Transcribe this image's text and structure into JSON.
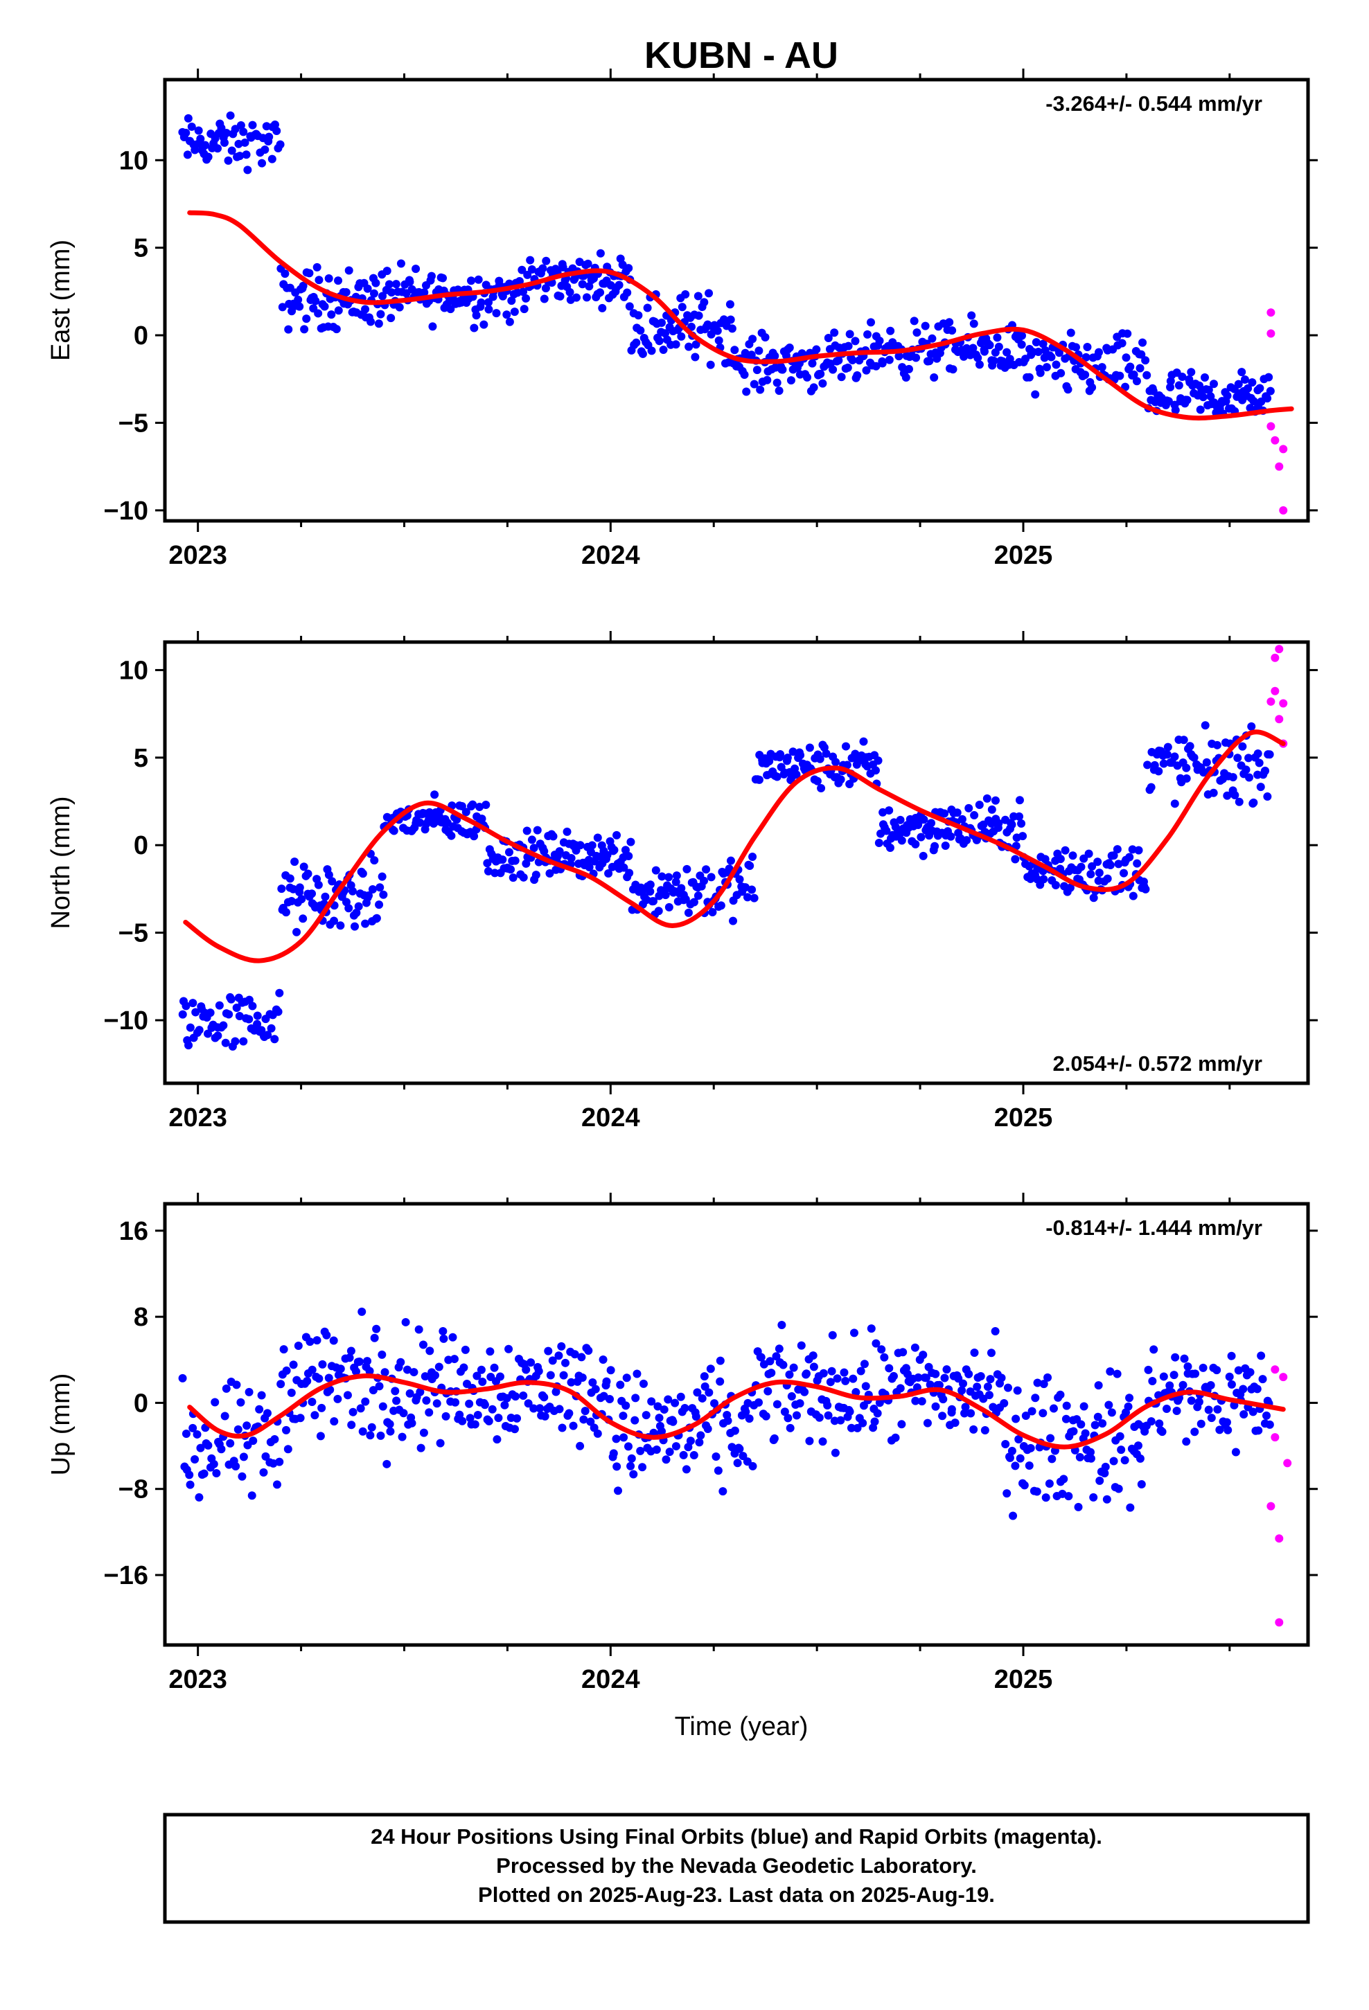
{
  "title": "KUBN - AU",
  "xlabel": "Time (year)",
  "footer": {
    "line1": "24 Hour Positions Using Final Orbits (blue) and Rapid Orbits (magenta).",
    "line2": "Processed by the Nevada Geodetic Laboratory.",
    "line3": "Plotted on 2025-Aug-23. Last data on 2025-Aug-19."
  },
  "colors": {
    "final": "#0000ff",
    "rapid": "#ff00ff",
    "fit": "#ff0000"
  },
  "chart_data": [
    {
      "type": "scatter",
      "ylabel": "East (mm)",
      "rate_text": "-3.264+/- 0.544 mm/yr",
      "rate_position": "top-right",
      "xlim": [
        2022.92,
        2025.69
      ],
      "ylim": [
        -10.6,
        14.6
      ],
      "x_ticks": [
        2023,
        2024,
        2025
      ],
      "x_tick_labels": [
        "2023",
        "2024",
        "2025"
      ],
      "y_ticks": [
        -10,
        -5,
        0,
        5,
        10
      ],
      "y_tick_labels": [
        "−10",
        "−5",
        "0",
        "5",
        "10"
      ],
      "grid": false,
      "fit_line": {
        "x": [
          2022.98,
          2023.04,
          2023.1,
          2023.2,
          2023.3,
          2023.4,
          2023.5,
          2023.6,
          2023.7,
          2023.8,
          2023.9,
          2024.0,
          2024.1,
          2024.2,
          2024.3,
          2024.4,
          2024.5,
          2024.6,
          2024.7,
          2024.8,
          2024.9,
          2025.0,
          2025.1,
          2025.2,
          2025.3,
          2025.4,
          2025.5,
          2025.6,
          2025.65
        ],
        "y": [
          7.0,
          6.9,
          6.3,
          4.2,
          2.6,
          1.9,
          2.0,
          2.3,
          2.5,
          2.9,
          3.5,
          3.6,
          2.3,
          0.0,
          -1.3,
          -1.5,
          -1.2,
          -1.0,
          -0.9,
          -0.5,
          0.1,
          0.3,
          -0.8,
          -2.5,
          -4.1,
          -4.7,
          -4.6,
          -4.3,
          -4.2
        ]
      },
      "series": [
        {
          "name": "Final Orbits (blue)",
          "segments": [
            {
              "x_start": 2022.96,
              "x_end": 2023.2,
              "center": 11.0,
              "spread": 1.3,
              "count": 60
            },
            {
              "x_start": 2023.2,
              "x_end": 2023.45,
              "center": 2.1,
              "spread": 1.6,
              "count": 75
            },
            {
              "x_start": 2023.45,
              "x_end": 2023.8,
              "center": 2.3,
              "spread": 1.4,
              "count": 95
            },
            {
              "x_start": 2023.8,
              "x_end": 2024.05,
              "center": 3.2,
              "spread": 1.2,
              "count": 80
            },
            {
              "x_start": 2024.05,
              "x_end": 2024.3,
              "center": 0.5,
              "spread": 1.8,
              "count": 75
            },
            {
              "x_start": 2024.3,
              "x_end": 2024.6,
              "center": -1.6,
              "spread": 1.4,
              "count": 85
            },
            {
              "x_start": 2024.6,
              "x_end": 2025.0,
              "center": -0.8,
              "spread": 1.4,
              "count": 110
            },
            {
              "x_start": 2025.0,
              "x_end": 2025.3,
              "center": -1.8,
              "spread": 1.6,
              "count": 80
            },
            {
              "x_start": 2025.3,
              "x_end": 2025.6,
              "center": -3.5,
              "spread": 1.3,
              "count": 85
            }
          ]
        },
        {
          "name": "Rapid Orbits (magenta)",
          "points": [
            [
              2025.6,
              1.3
            ],
            [
              2025.6,
              0.1
            ],
            [
              2025.6,
              -5.2
            ],
            [
              2025.61,
              -6.0
            ],
            [
              2025.62,
              -7.5
            ],
            [
              2025.63,
              -6.5
            ],
            [
              2025.63,
              -10.0
            ]
          ]
        }
      ]
    },
    {
      "type": "scatter",
      "ylabel": "North (mm)",
      "rate_text": "2.054+/- 0.572 mm/yr",
      "rate_position": "bottom-right",
      "xlim": [
        2022.92,
        2025.69
      ],
      "ylim": [
        -13.6,
        11.6
      ],
      "x_ticks": [
        2023,
        2024,
        2025
      ],
      "x_tick_labels": [
        "2023",
        "2024",
        "2025"
      ],
      "y_ticks": [
        -10,
        -5,
        0,
        5,
        10
      ],
      "y_tick_labels": [
        "−10",
        "−5",
        "0",
        "5",
        "10"
      ],
      "grid": false,
      "fit_line": {
        "x": [
          2022.97,
          2023.05,
          2023.15,
          2023.25,
          2023.35,
          2023.45,
          2023.55,
          2023.65,
          2023.75,
          2023.85,
          2023.95,
          2024.05,
          2024.15,
          2024.25,
          2024.35,
          2024.45,
          2024.55,
          2024.65,
          2024.75,
          2024.85,
          2024.95,
          2025.05,
          2025.15,
          2025.25,
          2025.35,
          2025.45,
          2025.55,
          2025.63
        ],
        "y": [
          -4.4,
          -5.8,
          -6.6,
          -5.5,
          -2.3,
          0.8,
          2.4,
          1.5,
          0.2,
          -0.9,
          -1.8,
          -3.3,
          -4.6,
          -3.2,
          0.5,
          3.6,
          4.4,
          3.2,
          2.0,
          1.0,
          0.0,
          -1.2,
          -2.4,
          -2.2,
          0.4,
          4.0,
          6.4,
          5.8
        ]
      },
      "series": [
        {
          "name": "Final Orbits (blue)",
          "segments": [
            {
              "x_start": 2022.96,
              "x_end": 2023.2,
              "center": -10.0,
              "spread": 1.5,
              "count": 60
            },
            {
              "x_start": 2023.2,
              "x_end": 2023.45,
              "center": -3.0,
              "spread": 1.8,
              "count": 75
            },
            {
              "x_start": 2023.45,
              "x_end": 2023.7,
              "center": 1.4,
              "spread": 1.1,
              "count": 70
            },
            {
              "x_start": 2023.7,
              "x_end": 2024.05,
              "center": -0.6,
              "spread": 1.2,
              "count": 110
            },
            {
              "x_start": 2024.05,
              "x_end": 2024.35,
              "center": -2.5,
              "spread": 1.6,
              "count": 85
            },
            {
              "x_start": 2024.35,
              "x_end": 2024.65,
              "center": 4.5,
              "spread": 1.2,
              "count": 85
            },
            {
              "x_start": 2024.65,
              "x_end": 2025.0,
              "center": 1.0,
              "spread": 1.3,
              "count": 110
            },
            {
              "x_start": 2025.0,
              "x_end": 2025.3,
              "center": -1.5,
              "spread": 1.5,
              "count": 80
            },
            {
              "x_start": 2025.3,
              "x_end": 2025.6,
              "center": 4.5,
              "spread": 1.8,
              "count": 85
            }
          ]
        },
        {
          "name": "Rapid Orbits (magenta)",
          "points": [
            [
              2025.6,
              8.2
            ],
            [
              2025.61,
              8.8
            ],
            [
              2025.61,
              10.7
            ],
            [
              2025.62,
              11.2
            ],
            [
              2025.62,
              7.2
            ],
            [
              2025.63,
              8.1
            ],
            [
              2025.63,
              5.8
            ]
          ]
        }
      ]
    },
    {
      "type": "scatter",
      "ylabel": "Up (mm)",
      "rate_text": "-0.814+/- 1.444 mm/yr",
      "rate_position": "top-right",
      "xlim": [
        2022.92,
        2025.69
      ],
      "ylim": [
        -22.5,
        18.5
      ],
      "x_ticks": [
        2023,
        2024,
        2025
      ],
      "x_tick_labels": [
        "2023",
        "2024",
        "2025"
      ],
      "y_ticks": [
        -16,
        -8,
        0,
        8,
        16
      ],
      "y_tick_labels": [
        "−16",
        "−8",
        "0",
        "8",
        "16"
      ],
      "grid": false,
      "fit_line": {
        "x": [
          2022.98,
          2023.05,
          2023.12,
          2023.2,
          2023.3,
          2023.4,
          2023.5,
          2023.6,
          2023.7,
          2023.8,
          2023.9,
          2024.0,
          2024.1,
          2024.2,
          2024.3,
          2024.4,
          2024.5,
          2024.6,
          2024.7,
          2024.8,
          2024.9,
          2025.0,
          2025.1,
          2025.2,
          2025.3,
          2025.4,
          2025.5,
          2025.63
        ],
        "y": [
          -0.4,
          -2.6,
          -3.0,
          -1.2,
          1.4,
          2.5,
          1.9,
          1.0,
          1.3,
          1.9,
          1.1,
          -1.8,
          -3.2,
          -2.1,
          0.5,
          1.9,
          1.5,
          0.5,
          0.6,
          1.2,
          -0.6,
          -3.0,
          -4.1,
          -2.9,
          -0.3,
          1.0,
          0.3,
          -0.6
        ]
      },
      "series": [
        {
          "name": "Final Orbits (blue)",
          "segments": [
            {
              "x_start": 2022.96,
              "x_end": 2023.2,
              "center": -4.0,
              "spread": 5.0,
              "count": 60
            },
            {
              "x_start": 2023.2,
              "x_end": 2023.55,
              "center": 2.0,
              "spread": 5.5,
              "count": 100
            },
            {
              "x_start": 2023.55,
              "x_end": 2024.0,
              "center": 1.5,
              "spread": 4.5,
              "count": 130
            },
            {
              "x_start": 2024.0,
              "x_end": 2024.35,
              "center": -2.5,
              "spread": 5.0,
              "count": 100
            },
            {
              "x_start": 2024.35,
              "x_end": 2024.95,
              "center": 1.0,
              "spread": 4.5,
              "count": 170
            },
            {
              "x_start": 2024.95,
              "x_end": 2025.3,
              "center": -3.5,
              "spread": 5.5,
              "count": 100
            },
            {
              "x_start": 2025.3,
              "x_end": 2025.6,
              "center": 0.5,
              "spread": 4.5,
              "count": 85
            }
          ]
        },
        {
          "name": "Rapid Orbits (magenta)",
          "points": [
            [
              2025.6,
              -9.6
            ],
            [
              2025.61,
              3.1
            ],
            [
              2025.61,
              -3.2
            ],
            [
              2025.62,
              -12.6
            ],
            [
              2025.62,
              -20.4
            ],
            [
              2025.63,
              2.4
            ],
            [
              2025.64,
              -5.6
            ]
          ]
        }
      ]
    }
  ]
}
